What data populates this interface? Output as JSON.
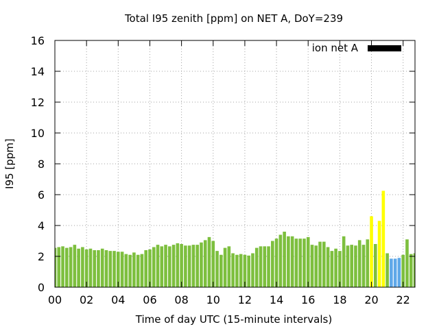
{
  "chart_data": {
    "type": "bar",
    "title": "Total I95 zenith [ppm] on NET A, DoY=239",
    "xlabel": "Time of day UTC (15-minute intervals)",
    "ylabel": "I95 [ppm]",
    "xlim": [
      0,
      22.75
    ],
    "ylim": [
      0,
      16
    ],
    "xticks": [
      "00",
      "02",
      "04",
      "06",
      "08",
      "10",
      "12",
      "14",
      "16",
      "18",
      "20",
      "22"
    ],
    "yticks": [
      "0",
      "2",
      "4",
      "6",
      "8",
      "10",
      "12",
      "14",
      "16"
    ],
    "grid": true,
    "legend": {
      "label": "ion net A",
      "color": "#000000",
      "placement": "top-right"
    },
    "bar_width_hours": 0.2,
    "x_start_hours": 0,
    "x_step_hours": 0.25,
    "values": [
      2.55,
      2.6,
      2.65,
      2.55,
      2.6,
      2.75,
      2.5,
      2.6,
      2.45,
      2.5,
      2.4,
      2.4,
      2.5,
      2.4,
      2.35,
      2.35,
      2.3,
      2.3,
      2.15,
      2.1,
      2.25,
      2.1,
      2.15,
      2.4,
      2.45,
      2.6,
      2.75,
      2.65,
      2.75,
      2.65,
      2.75,
      2.85,
      2.8,
      2.7,
      2.7,
      2.75,
      2.75,
      2.9,
      3.05,
      3.25,
      3.0,
      2.35,
      2.1,
      2.55,
      2.65,
      2.2,
      2.1,
      2.15,
      2.1,
      2.05,
      2.2,
      2.55,
      2.65,
      2.65,
      2.65,
      3.0,
      3.15,
      3.4,
      3.6,
      3.3,
      3.3,
      3.15,
      3.15,
      3.15,
      3.25,
      2.75,
      2.7,
      2.95,
      2.95,
      2.6,
      2.35,
      2.5,
      2.35,
      3.3,
      2.7,
      2.75,
      2.7,
      3.05,
      2.75,
      3.1,
      4.6,
      2.8,
      4.3,
      6.25,
      2.2,
      1.85,
      1.85,
      1.9,
      2.1,
      3.1,
      2.15,
      2.2
    ],
    "colors": [
      "#7dbf3e",
      "#ffff00",
      "#5fa8e8"
    ],
    "bar_color_index": [
      0,
      0,
      0,
      0,
      0,
      0,
      0,
      0,
      0,
      0,
      0,
      0,
      0,
      0,
      0,
      0,
      0,
      0,
      0,
      0,
      0,
      0,
      0,
      0,
      0,
      0,
      0,
      0,
      0,
      0,
      0,
      0,
      0,
      0,
      0,
      0,
      0,
      0,
      0,
      0,
      0,
      0,
      0,
      0,
      0,
      0,
      0,
      0,
      0,
      0,
      0,
      0,
      0,
      0,
      0,
      0,
      0,
      0,
      0,
      0,
      0,
      0,
      0,
      0,
      0,
      0,
      0,
      0,
      0,
      0,
      0,
      0,
      0,
      0,
      0,
      0,
      0,
      0,
      0,
      0,
      1,
      0,
      1,
      1,
      0,
      2,
      2,
      2,
      0,
      0,
      0,
      0
    ]
  }
}
